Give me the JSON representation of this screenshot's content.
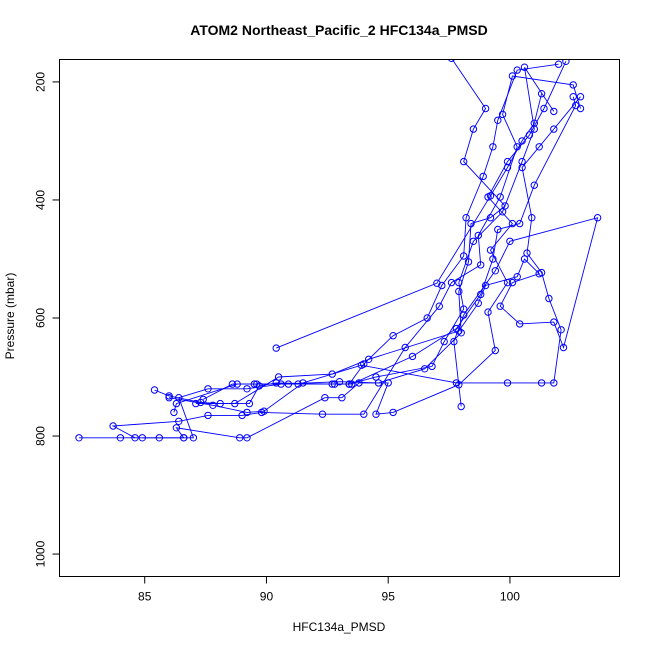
{
  "chart_data": {
    "type": "scatter",
    "title": "ATOM2 Northeast_Pacific_2 HFC134a_PMSD",
    "xlabel": "HFC134a_PMSD",
    "ylabel": "Pressure (mbar)",
    "xlim": [
      81.5,
      104.5
    ],
    "ylim": [
      1038,
      162
    ],
    "y_reversed": true,
    "xticks": [
      85,
      90,
      95,
      100
    ],
    "yticks": [
      200,
      400,
      600,
      800,
      1000
    ],
    "grid": false,
    "legend": "none",
    "color": "#0000ff",
    "marker": "open-circle",
    "connected": true,
    "series": [
      {
        "points": [
          [
            82.3,
            803
          ],
          [
            84.0,
            803
          ],
          [
            85.6,
            803
          ],
          [
            86.6,
            803
          ],
          [
            87.0,
            803
          ],
          [
            86.4,
            735
          ],
          [
            87.6,
            720
          ],
          [
            89.2,
            720
          ],
          [
            90.6,
            712
          ],
          [
            93.0,
            708
          ],
          [
            94.6,
            710
          ],
          [
            96.5,
            686
          ],
          [
            98.0,
            625
          ],
          [
            97.9,
            555
          ],
          [
            98.3,
            505
          ],
          [
            98.4,
            440
          ],
          [
            99.2,
            430
          ],
          [
            99.8,
            410
          ],
          [
            98.1,
            335
          ],
          [
            98.5,
            280
          ],
          [
            99.0,
            245
          ],
          [
            97.6,
            160
          ]
        ]
      },
      {
        "points": [
          [
            84.9,
            803
          ],
          [
            86.6,
            803
          ],
          [
            86.3,
            786
          ],
          [
            88.9,
            803
          ],
          [
            89.2,
            803
          ],
          [
            92.4,
            735
          ],
          [
            93.1,
            735
          ],
          [
            93.8,
            710
          ],
          [
            95.0,
            710
          ],
          [
            94.5,
            763
          ],
          [
            95.2,
            760
          ],
          [
            97.9,
            713
          ],
          [
            99.4,
            655
          ],
          [
            99.1,
            590
          ],
          [
            99.9,
            540
          ],
          [
            99.2,
            485
          ],
          [
            100.1,
            440
          ],
          [
            99.1,
            395
          ],
          [
            99.9,
            335
          ],
          [
            100.8,
            290
          ],
          [
            101.4,
            245
          ],
          [
            102.3,
            165
          ]
        ]
      },
      {
        "points": [
          [
            84.6,
            803
          ],
          [
            83.7,
            783
          ],
          [
            86.4,
            775
          ],
          [
            87.6,
            765
          ],
          [
            89.0,
            765
          ],
          [
            89.8,
            760
          ],
          [
            92.3,
            763
          ],
          [
            94.0,
            763
          ],
          [
            95.7,
            650
          ],
          [
            97.1,
            580
          ],
          [
            97.6,
            540
          ],
          [
            98.8,
            510
          ],
          [
            98.7,
            460
          ],
          [
            99.6,
            395
          ],
          [
            100.3,
            310
          ],
          [
            99.7,
            255
          ],
          [
            100.1,
            190
          ],
          [
            102.6,
            205
          ],
          [
            102.9,
            245
          ]
        ]
      },
      {
        "points": [
          [
            85.4,
            722
          ],
          [
            86.0,
            732
          ],
          [
            87.3,
            743
          ],
          [
            88.1,
            745
          ],
          [
            89.3,
            745
          ],
          [
            89.7,
            715
          ],
          [
            90.4,
            710
          ],
          [
            92.7,
            712
          ],
          [
            93.4,
            712
          ],
          [
            94.5,
            700
          ],
          [
            96.8,
            682
          ],
          [
            97.3,
            640
          ],
          [
            98.1,
            585
          ],
          [
            97.9,
            540
          ],
          [
            98.5,
            470
          ],
          [
            99.7,
            420
          ],
          [
            100.5,
            335
          ],
          [
            101.0,
            280
          ],
          [
            100.6,
            175
          ],
          [
            101.8,
            250
          ]
        ]
      },
      {
        "points": [
          [
            86.2,
            760
          ],
          [
            86.3,
            745
          ],
          [
            88.8,
            712
          ],
          [
            89.6,
            712
          ],
          [
            91.3,
            712
          ],
          [
            93.4,
            712
          ],
          [
            94.0,
            678
          ],
          [
            95.2,
            630
          ],
          [
            96.6,
            600
          ],
          [
            97.2,
            545
          ],
          [
            98.1,
            495
          ],
          [
            98.2,
            430
          ],
          [
            98.9,
            360
          ],
          [
            99.3,
            310
          ],
          [
            99.5,
            265
          ],
          [
            100.3,
            180
          ],
          [
            102.0,
            170
          ]
        ]
      },
      {
        "points": [
          [
            87.4,
            738
          ],
          [
            88.6,
            712
          ],
          [
            89.5,
            712
          ],
          [
            90.9,
            712
          ],
          [
            92.8,
            712
          ],
          [
            93.5,
            712
          ],
          [
            96.0,
            665
          ],
          [
            97.8,
            618
          ],
          [
            98.8,
            560
          ],
          [
            99.3,
            500
          ],
          [
            99.5,
            450
          ],
          [
            100.4,
            440
          ],
          [
            101.0,
            375
          ],
          [
            102.7,
            240
          ],
          [
            102.6,
            225
          ]
        ]
      },
      {
        "points": [
          [
            86.0,
            735
          ],
          [
            87.8,
            748
          ],
          [
            89.2,
            760
          ],
          [
            89.9,
            758
          ],
          [
            91.5,
            710
          ],
          [
            93.9,
            680
          ],
          [
            97.8,
            710
          ],
          [
            99.9,
            710
          ],
          [
            101.3,
            710
          ],
          [
            101.8,
            710
          ],
          [
            102.1,
            620
          ],
          [
            101.6,
            567
          ],
          [
            101.3,
            523
          ],
          [
            100.7,
            490
          ],
          [
            100.9,
            430
          ],
          [
            100.5,
            345
          ],
          [
            101.2,
            310
          ],
          [
            101.8,
            280
          ],
          [
            102.9,
            225
          ]
        ]
      },
      {
        "points": [
          [
            87.1,
            745
          ],
          [
            88.7,
            745
          ],
          [
            90.5,
            700
          ],
          [
            92.7,
            695
          ],
          [
            94.2,
            670
          ],
          [
            97.9,
            622
          ],
          [
            98.7,
            575
          ],
          [
            99.0,
            545
          ],
          [
            100.3,
            530
          ],
          [
            100.6,
            500
          ],
          [
            101.2,
            525
          ],
          [
            100.1,
            540
          ],
          [
            99.6,
            580
          ],
          [
            100.4,
            610
          ],
          [
            101.8,
            607
          ],
          [
            102.2,
            650
          ],
          [
            103.6,
            430
          ],
          [
            100.0,
            470
          ],
          [
            99.4,
            520
          ],
          [
            98.1,
            595
          ],
          [
            97.7,
            640
          ],
          [
            98.0,
            750
          ]
        ]
      },
      {
        "points": [
          [
            90.4,
            651
          ],
          [
            97.0,
            541
          ],
          [
            99.2,
            393
          ],
          [
            99.9,
            345
          ],
          [
            100.5,
            300
          ],
          [
            101.0,
            270
          ],
          [
            101.3,
            220
          ]
        ]
      }
    ]
  }
}
